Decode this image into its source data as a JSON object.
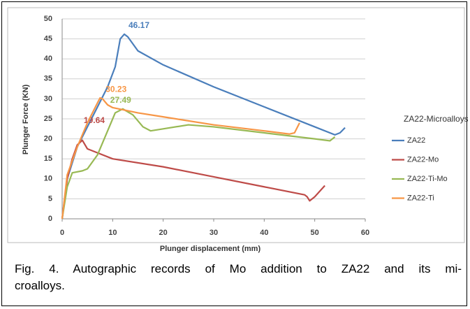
{
  "chart_data": {
    "type": "line",
    "xlabel": "Plunger displacement (mm)",
    "ylabel": "Plunger Force (KN)",
    "legend_title": "ZA22-Microalloys",
    "legend": "right",
    "grid": true,
    "xlim": [
      0,
      60
    ],
    "xticks": [
      0,
      10,
      20,
      30,
      40,
      50,
      60
    ],
    "ylim": [
      0,
      50
    ],
    "yticks": [
      0,
      5,
      10,
      15,
      20,
      25,
      30,
      35,
      40,
      45,
      50
    ],
    "series": [
      {
        "name": "ZA22",
        "color": "#4a7ebb",
        "x": [
          0,
          1,
          3,
          5,
          7,
          9,
          10.5,
          11.5,
          12.3,
          13,
          15,
          20,
          30,
          40,
          50,
          54,
          55,
          56
        ],
        "values": [
          0,
          10,
          18,
          23,
          28,
          33,
          38,
          45,
          46.17,
          45.5,
          42,
          38.5,
          33,
          28,
          23,
          21,
          21.5,
          22.8
        ]
      },
      {
        "name": "ZA22-Mo",
        "color": "#be4b48",
        "x": [
          0,
          1,
          2,
          3,
          4,
          5,
          10,
          20,
          30,
          40,
          48,
          48.5,
          49,
          50,
          52
        ],
        "values": [
          0,
          10,
          15,
          18.5,
          19.64,
          17.5,
          15,
          13,
          10.5,
          8,
          6,
          5.5,
          4.5,
          5.5,
          8.3
        ]
      },
      {
        "name": "ZA22-Ti-Mo",
        "color": "#98b954",
        "x": [
          0,
          1,
          2,
          4,
          5,
          7,
          9,
          10.5,
          12,
          14,
          16,
          17.5,
          20,
          25,
          30,
          40,
          50,
          53,
          54
        ],
        "values": [
          0,
          8,
          11.5,
          12,
          12.5,
          16,
          22,
          26.5,
          27.49,
          26,
          23,
          22,
          22.5,
          23.5,
          23,
          21.5,
          20,
          19.5,
          20.5
        ]
      },
      {
        "name": "ZA22-Ti",
        "color": "#f79646",
        "x": [
          0,
          1,
          3,
          5,
          7,
          7.5,
          8,
          9,
          10,
          15,
          20,
          30,
          40,
          45,
          46,
          47
        ],
        "values": [
          0,
          11,
          18,
          24,
          29,
          30.23,
          30,
          28.5,
          27.8,
          26.5,
          25.5,
          23.5,
          22,
          21.2,
          21.5,
          24
        ]
      }
    ]
  },
  "caption": [
    "Fig. 4. Autographic records of Mo addition to ZA22 and its mi-",
    "croalloys."
  ]
}
